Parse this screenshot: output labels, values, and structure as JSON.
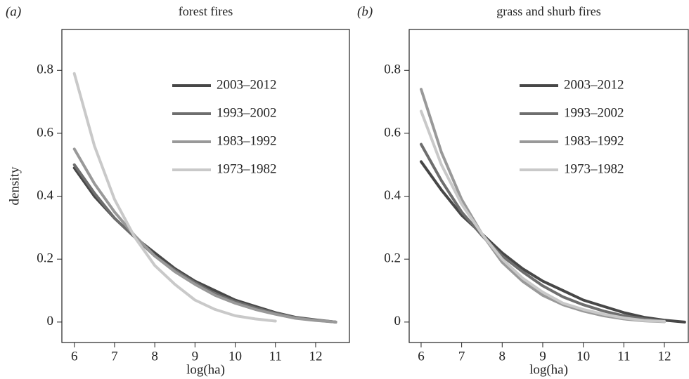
{
  "chart_data": [
    {
      "type": "line",
      "panel_label": "(a)",
      "title": "forest fires",
      "x_label": "log(ha)",
      "y_label": "density",
      "x": [
        6,
        6.5,
        7,
        7.5,
        8,
        8.5,
        9,
        9.5,
        10,
        10.5,
        11,
        11.5,
        12,
        12.5
      ],
      "series": [
        {
          "name": "2003–2012",
          "color": "#474747",
          "values": [
            0.49,
            0.4,
            0.33,
            0.27,
            0.22,
            0.17,
            0.13,
            0.1,
            0.07,
            0.05,
            0.03,
            0.015,
            0.007,
            0.0
          ]
        },
        {
          "name": "1993–2002",
          "color": "#6e6e6e",
          "values": [
            0.5,
            0.41,
            0.33,
            0.27,
            0.21,
            0.165,
            0.125,
            0.09,
            0.065,
            0.045,
            0.028,
            0.014,
            0.006,
            0.0
          ]
        },
        {
          "name": "1983–1992",
          "color": "#999999",
          "values": [
            0.55,
            0.44,
            0.35,
            0.275,
            0.21,
            0.16,
            0.12,
            0.085,
            0.06,
            0.04,
            0.025,
            0.012,
            0.005,
            0.0
          ]
        },
        {
          "name": "1973–1982",
          "color": "#c9c9c9",
          "values": [
            0.79,
            0.56,
            0.39,
            0.27,
            0.18,
            0.12,
            0.07,
            0.04,
            0.02,
            0.01,
            0.003,
            null,
            null,
            null
          ]
        }
      ],
      "xlim": [
        5.69,
        12.84
      ],
      "xticks": [
        6,
        7,
        8,
        9,
        10,
        11,
        12
      ],
      "ylim": [
        -0.065,
        0.93
      ],
      "yticks": [
        0,
        0.2,
        0.4,
        0.6,
        0.8
      ],
      "legend": "upper right"
    },
    {
      "type": "line",
      "panel_label": "(b)",
      "title": "grass and shurb fires",
      "x_label": "log(ha)",
      "x": [
        6,
        6.5,
        7,
        7.5,
        8,
        8.5,
        9,
        9.5,
        10,
        10.5,
        11,
        11.5,
        12,
        12.5
      ],
      "series": [
        {
          "name": "2003–2012",
          "color": "#474747",
          "values": [
            0.51,
            0.42,
            0.34,
            0.28,
            0.22,
            0.17,
            0.13,
            0.1,
            0.07,
            0.05,
            0.03,
            0.015,
            0.006,
            0.0
          ]
        },
        {
          "name": "1993–2002",
          "color": "#6e6e6e",
          "values": [
            0.565,
            0.45,
            0.35,
            0.275,
            0.21,
            0.16,
            0.115,
            0.08,
            0.055,
            0.035,
            0.02,
            0.01,
            0.003,
            null
          ]
        },
        {
          "name": "1983–1992",
          "color": "#999999",
          "values": [
            0.74,
            0.54,
            0.39,
            0.28,
            0.19,
            0.13,
            0.085,
            0.055,
            0.035,
            0.02,
            0.01,
            0.004,
            0.001,
            null
          ]
        },
        {
          "name": "1973–1982",
          "color": "#c9c9c9",
          "values": [
            0.67,
            0.5,
            0.375,
            0.28,
            0.2,
            0.14,
            0.095,
            0.06,
            0.04,
            0.025,
            0.013,
            0.005,
            0.002,
            null
          ]
        }
      ],
      "xlim": [
        5.706,
        12.59
      ],
      "xticks": [
        6,
        7,
        8,
        9,
        10,
        11,
        12
      ],
      "ylim": [
        -0.065,
        0.93
      ],
      "yticks": [
        0,
        0.2,
        0.4,
        0.6,
        0.8
      ],
      "legend": "upper right"
    }
  ]
}
